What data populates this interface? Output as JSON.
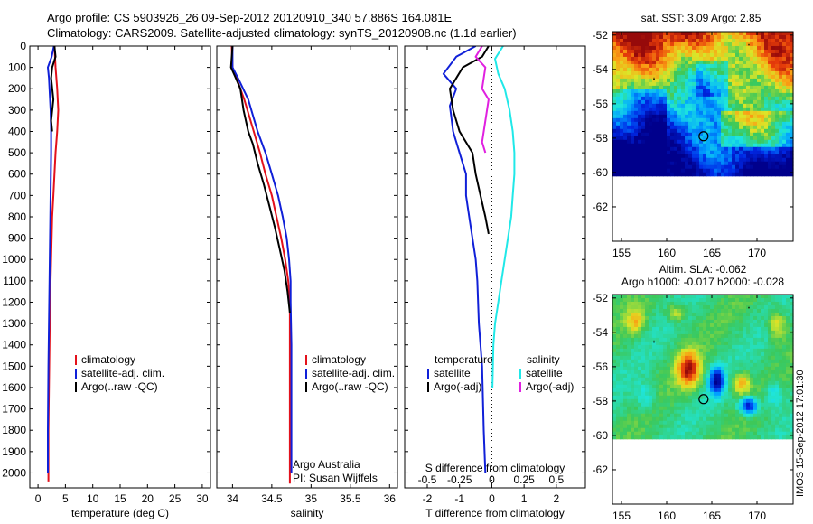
{
  "header": {
    "line1": "Argo profile: CS 5903926_26 09-Sep-2012 20120910_340 57.886S 164.081E",
    "line2": "Climatology: CARS2009. Satellite-adjusted climatology: synTS_20120908.nc (1.1d earlier)"
  },
  "colors": {
    "climatology": "#e3111b",
    "satellite": "#1020d8",
    "argo": "#000000",
    "sat_salinity": "#20e8e8",
    "argo_salinity_adj": "#e020e0"
  },
  "credit": {
    "line1": "Argo Australia",
    "line2": "PI: Susan Wijffels"
  },
  "side_stamp": "IMOS 15-Sep-2012 17:01:30",
  "chart_data": [
    {
      "type": "line",
      "id": "temperature",
      "title": "",
      "xlabel": "temperature (deg C)",
      "ylabel": "",
      "xlim": [
        -1.5,
        31.5
      ],
      "ylim": [
        2070,
        0
      ],
      "x_ticks": [
        0,
        5,
        10,
        15,
        20,
        25,
        30
      ],
      "y_ticks": [
        0,
        100,
        200,
        300,
        400,
        500,
        600,
        700,
        800,
        900,
        1000,
        1100,
        1200,
        1300,
        1400,
        1500,
        1600,
        1700,
        1800,
        1900,
        2000
      ],
      "legend_position": "lower-center",
      "legend": [
        "climatology",
        "satellite-adj. clim.",
        "Argo(..raw -QC)"
      ],
      "series": [
        {
          "name": "climatology",
          "color_key": "climatology",
          "x": [
            3.0,
            3.2,
            3.5,
            3.7,
            3.5,
            3.2,
            3.0,
            2.8,
            2.6,
            2.4,
            2.2,
            2.1,
            2.0,
            1.9,
            1.9
          ],
          "y": [
            0,
            100,
            200,
            300,
            400,
            500,
            600,
            700,
            800,
            1000,
            1200,
            1400,
            1600,
            1800,
            2040
          ]
        },
        {
          "name": "satellite-adj. clim.",
          "color_key": "satellite",
          "x": [
            2.9,
            2.5,
            1.8,
            2.0,
            2.3,
            2.4,
            2.4,
            2.3,
            2.2,
            2.1,
            2.0,
            1.9,
            1.8,
            1.8
          ],
          "y": [
            0,
            50,
            100,
            150,
            300,
            400,
            500,
            700,
            900,
            1100,
            1300,
            1500,
            1800,
            2000
          ]
        },
        {
          "name": "Argo(..raw -QC)",
          "color_key": "argo",
          "x": [
            3.0,
            3.2,
            2.6,
            2.4,
            2.8,
            2.4,
            2.6
          ],
          "y": [
            0,
            50,
            100,
            150,
            250,
            350,
            400
          ]
        }
      ]
    },
    {
      "type": "line",
      "id": "salinity",
      "title": "",
      "xlabel": "salinity",
      "ylabel": "",
      "xlim": [
        33.8,
        36.1
      ],
      "ylim": [
        2070,
        0
      ],
      "x_ticks": [
        34,
        34.5,
        35,
        35.5,
        36
      ],
      "x_tick_labels": [
        "34",
        "34.5",
        "35",
        "35.5",
        "36"
      ],
      "legend_position": "lower-right",
      "legend": [
        "climatology",
        "satellite-adj. clim.",
        "Argo(..raw -QC)"
      ],
      "series": [
        {
          "name": "climatology",
          "color_key": "climatology",
          "x": [
            33.99,
            34.0,
            34.05,
            34.15,
            34.27,
            34.35,
            34.42,
            34.5,
            34.56,
            34.62,
            34.67,
            34.71,
            34.73,
            34.73,
            34.73,
            34.73
          ],
          "y": [
            0,
            100,
            150,
            250,
            400,
            500,
            600,
            700,
            800,
            900,
            1000,
            1100,
            1200,
            1500,
            1800,
            2050
          ]
        },
        {
          "name": "satellite-adj. clim.",
          "color_key": "satellite",
          "x": [
            34.0,
            34.0,
            34.07,
            34.2,
            34.32,
            34.42,
            34.5,
            34.58,
            34.64,
            34.69,
            34.72,
            34.74,
            34.74,
            34.75,
            34.75,
            34.75,
            34.75
          ],
          "y": [
            0,
            100,
            150,
            250,
            400,
            500,
            600,
            700,
            800,
            900,
            1000,
            1100,
            1200,
            1400,
            1600,
            1800,
            2000
          ]
        },
        {
          "name": "Argo(..raw -QC)",
          "color_key": "argo",
          "x": [
            34.0,
            33.98,
            34.03,
            34.1,
            34.14,
            34.2,
            34.26,
            34.32,
            34.4,
            34.47,
            34.54,
            34.6,
            34.66,
            34.7,
            34.73
          ],
          "y": [
            0,
            100,
            140,
            200,
            300,
            400,
            460,
            550,
            650,
            750,
            850,
            950,
            1050,
            1150,
            1250
          ]
        }
      ]
    },
    {
      "type": "line",
      "id": "difference",
      "title": "",
      "xlabel": "T difference from climatology",
      "ylabel": "",
      "xlim": [
        -2.7,
        2.9
      ],
      "ylim": [
        2070,
        0
      ],
      "x_ticks": [
        -2,
        -1,
        0,
        1,
        2
      ],
      "secondary_xlabel": "S difference from climatology",
      "secondary_x_tick_labels": [
        "-0.5",
        "-0.25",
        "0",
        "0.25",
        "0.5"
      ],
      "legend_position": "lower-center",
      "legend_headings": [
        "temperature",
        "salinity"
      ],
      "legend": [
        "satellite",
        "Argo(-adj)",
        "satellite",
        "Argo(-adj)"
      ],
      "series": [
        {
          "name": "satellite",
          "group": "temperature",
          "color_key": "satellite",
          "x": [
            -0.5,
            -1.1,
            -1.5,
            -1.1,
            -1.3,
            -1.2,
            -1.0,
            -0.8,
            -0.8,
            -0.7,
            -0.6,
            -0.5,
            -0.45,
            -0.4,
            -0.3,
            -0.25,
            -0.2
          ],
          "y": [
            0,
            50,
            130,
            200,
            280,
            400,
            500,
            600,
            700,
            800,
            900,
            1000,
            1100,
            1300,
            1500,
            1800,
            2000
          ]
        },
        {
          "name": "Argo(-adj)",
          "group": "temperature",
          "color_key": "argo",
          "x": [
            -0.1,
            -0.3,
            -0.9,
            -1.3,
            -1.2,
            -1.0,
            -0.6,
            -0.5,
            -0.35,
            -0.2,
            -0.1
          ],
          "y": [
            0,
            50,
            100,
            200,
            300,
            400,
            500,
            600,
            700,
            800,
            880
          ]
        },
        {
          "name": "satellite",
          "group": "salinity",
          "color_key": "sat_salinity",
          "x": [
            0.35,
            0.1,
            0.2,
            0.4,
            0.55,
            0.65,
            0.7,
            0.7,
            0.65,
            0.6,
            0.5,
            0.4,
            0.3,
            0.2,
            0.1,
            0.05,
            0.02
          ],
          "y": [
            0,
            60,
            130,
            200,
            300,
            400,
            500,
            600,
            700,
            800,
            900,
            1000,
            1100,
            1200,
            1300,
            1400,
            1600
          ]
        },
        {
          "name": "Argo(-adj)",
          "group": "salinity",
          "color_key": "argo_salinity_adj",
          "x": [
            -0.3,
            -0.5,
            -0.2,
            -0.3,
            -0.1,
            -0.2,
            -0.3,
            -0.2
          ],
          "y": [
            0,
            50,
            100,
            200,
            250,
            350,
            450,
            500
          ]
        }
      ]
    },
    {
      "type": "heatmap",
      "id": "sst_map",
      "title": "sat. SST: 3.09 Argo: 2.85",
      "xlim": [
        154,
        174
      ],
      "ylim": [
        -64,
        -51.8
      ],
      "x_ticks": [
        155,
        160,
        165,
        170
      ],
      "y_ticks": [
        -52,
        -54,
        -56,
        -58,
        -60,
        -62
      ],
      "data_extent_lat": [
        -60.2,
        -51.8
      ],
      "marker": {
        "lon": 164.081,
        "lat": -57.886
      }
    },
    {
      "type": "heatmap",
      "id": "sla_map",
      "title": "Altim. SLA: -0.062",
      "subtitle": "Argo h1000: -0.017 h2000: -0.028",
      "xlim": [
        154,
        174
      ],
      "ylim": [
        -64,
        -51.8
      ],
      "x_ticks": [
        155,
        160,
        165,
        170
      ],
      "y_ticks": [
        -52,
        -54,
        -56,
        -58,
        -60,
        -62
      ],
      "data_extent_lat": [
        -60.2,
        -51.8
      ],
      "marker": {
        "lon": 164.081,
        "lat": -57.886
      }
    }
  ]
}
